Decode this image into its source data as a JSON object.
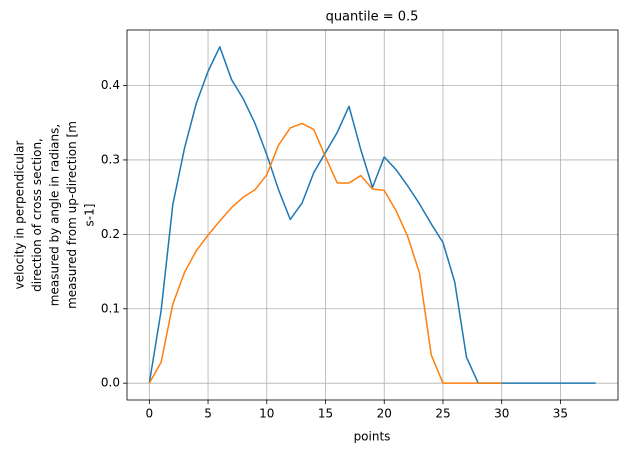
{
  "chart_data": {
    "type": "line",
    "title": "quantile = 0.5",
    "xlabel": "points",
    "ylabel": [
      "velocity in perpendicular",
      "direction of cross section,",
      "measured by angle in radians,",
      "measured from up-direction [m",
      "s-1]"
    ],
    "x": [
      0,
      1,
      2,
      3,
      4,
      5,
      6,
      7,
      8,
      9,
      10,
      11,
      12,
      13,
      14,
      15,
      16,
      17,
      18,
      19,
      20,
      21,
      22,
      23,
      24,
      25,
      26,
      27,
      28,
      29,
      30,
      31,
      32,
      33,
      34,
      35,
      36,
      37,
      38
    ],
    "series": [
      {
        "color": "#1f77b4",
        "values": [
          0,
          0.097,
          0.24,
          0.316,
          0.376,
          0.419,
          0.452,
          0.408,
          0.382,
          0.349,
          0.307,
          0.26,
          0.22,
          0.242,
          0.283,
          0.31,
          0.337,
          0.372,
          0.314,
          0.263,
          0.304,
          0.287,
          0.265,
          0.241,
          0.214,
          0.189,
          0.136,
          0.035,
          0,
          0,
          0,
          0,
          0,
          0,
          0,
          0,
          0,
          0,
          0
        ]
      },
      {
        "color": "#ff7f0e",
        "values": [
          0,
          0.028,
          0.106,
          0.149,
          0.178,
          0.199,
          0.218,
          0.236,
          0.25,
          0.26,
          0.28,
          0.32,
          0.343,
          0.349,
          0.341,
          0.304,
          0.269,
          0.269,
          0.279,
          0.261,
          0.259,
          0.232,
          0.197,
          0.148,
          0.038,
          0,
          0,
          0,
          0,
          0,
          0,
          null,
          null,
          null,
          null,
          null,
          null,
          null,
          null
        ]
      }
    ],
    "xlim": [
      -1.9,
      39.9
    ],
    "xticks": [
      0,
      5,
      10,
      15,
      20,
      25,
      30,
      35
    ],
    "ylim": [
      -0.0226,
      0.4746
    ],
    "yticks": [
      {
        "value": 0,
        "label": "0.0"
      },
      0.1,
      0.2,
      0.3,
      0.4
    ],
    "grid": true
  }
}
